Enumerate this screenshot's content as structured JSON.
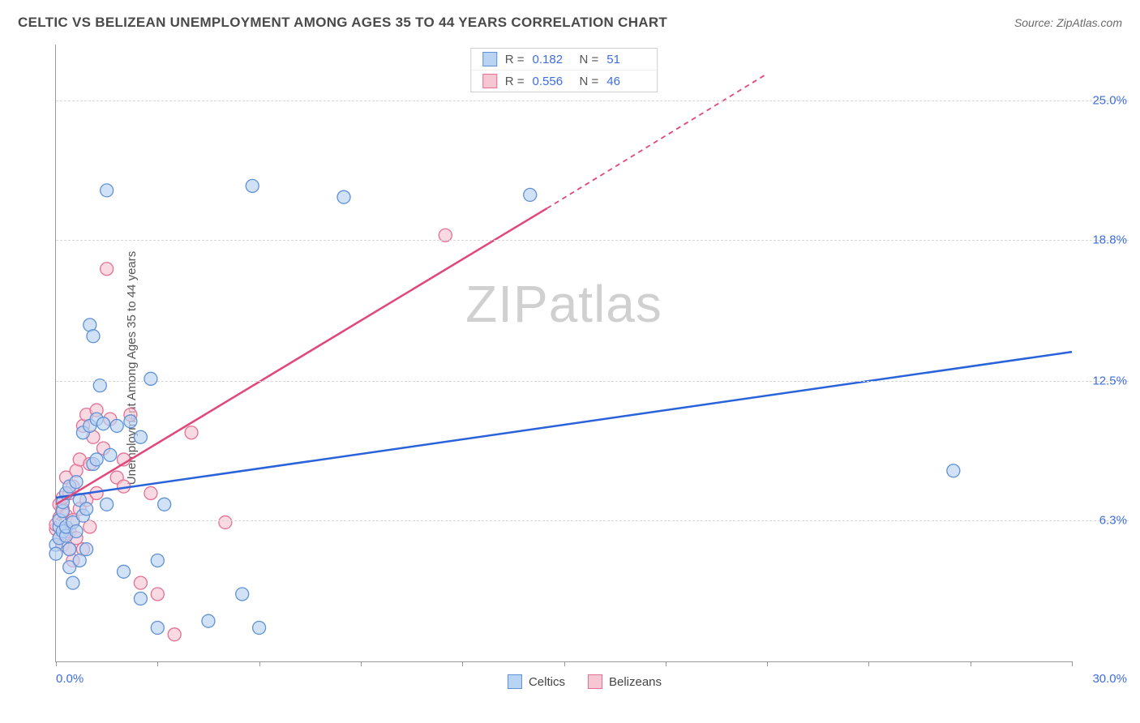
{
  "header": {
    "title": "CELTIC VS BELIZEAN UNEMPLOYMENT AMONG AGES 35 TO 44 YEARS CORRELATION CHART",
    "source": "Source: ZipAtlas.com"
  },
  "watermark": "ZIPatlas",
  "ylabel": "Unemployment Among Ages 35 to 44 years",
  "axes": {
    "xlim": [
      0,
      30
    ],
    "ylim": [
      0,
      27.5
    ],
    "xticks": [
      0,
      3,
      6,
      9,
      12,
      15,
      18,
      21,
      24,
      27,
      30
    ],
    "yticks": [
      6.3,
      12.5,
      18.8,
      25.0
    ],
    "ytick_labels": [
      "6.3%",
      "12.5%",
      "18.8%",
      "25.0%"
    ],
    "x_min_label": "0.0%",
    "x_max_label": "30.0%",
    "grid_color": "#d8d8d8",
    "axis_color": "#9a9a9a",
    "label_color": "#3d6de0",
    "label_fontsize": 15
  },
  "series": {
    "celtics": {
      "label": "Celtics",
      "color_fill": "#b9d3f2",
      "color_stroke": "#5f91d6",
      "line_color": "#2962d9",
      "marker_radius": 8,
      "R": "0.182",
      "N": "51",
      "trend": {
        "x1": 0,
        "y1": 7.3,
        "x2": 30,
        "y2": 13.8,
        "dashed": false
      },
      "points": [
        [
          0.0,
          5.2
        ],
        [
          0.0,
          4.8
        ],
        [
          0.1,
          5.5
        ],
        [
          0.1,
          6.0
        ],
        [
          0.1,
          6.3
        ],
        [
          0.2,
          5.8
        ],
        [
          0.2,
          6.7
        ],
        [
          0.2,
          7.1
        ],
        [
          0.3,
          5.6
        ],
        [
          0.3,
          6.0
        ],
        [
          0.3,
          7.5
        ],
        [
          0.4,
          4.2
        ],
        [
          0.4,
          5.0
        ],
        [
          0.4,
          7.8
        ],
        [
          0.5,
          3.5
        ],
        [
          0.5,
          6.2
        ],
        [
          0.6,
          5.8
        ],
        [
          0.6,
          8.0
        ],
        [
          0.7,
          4.5
        ],
        [
          0.7,
          7.2
        ],
        [
          0.8,
          6.5
        ],
        [
          0.8,
          10.2
        ],
        [
          0.9,
          5.0
        ],
        [
          0.9,
          6.8
        ],
        [
          1.0,
          10.5
        ],
        [
          1.0,
          15.0
        ],
        [
          1.1,
          8.8
        ],
        [
          1.1,
          14.5
        ],
        [
          1.2,
          9.0
        ],
        [
          1.2,
          10.8
        ],
        [
          1.3,
          12.3
        ],
        [
          1.4,
          10.6
        ],
        [
          1.5,
          7.0
        ],
        [
          1.5,
          21.0
        ],
        [
          1.6,
          9.2
        ],
        [
          1.8,
          10.5
        ],
        [
          2.0,
          4.0
        ],
        [
          2.2,
          10.7
        ],
        [
          2.5,
          2.8
        ],
        [
          2.5,
          10.0
        ],
        [
          2.8,
          12.6
        ],
        [
          3.0,
          1.5
        ],
        [
          3.0,
          4.5
        ],
        [
          3.2,
          7.0
        ],
        [
          4.5,
          1.8
        ],
        [
          5.5,
          3.0
        ],
        [
          5.8,
          21.2
        ],
        [
          6.0,
          1.5
        ],
        [
          8.5,
          20.7
        ],
        [
          14.0,
          20.8
        ],
        [
          26.5,
          8.5
        ]
      ]
    },
    "belizeans": {
      "label": "Belizeans",
      "color_fill": "#f6c6d2",
      "color_stroke": "#e66f93",
      "line_color": "#e0487a",
      "marker_radius": 8,
      "R": "0.556",
      "N": "46",
      "trend": {
        "x1": 0,
        "y1": 7.0,
        "x2": 14.5,
        "y2": 20.2,
        "dashed_extend_x2": 21.0,
        "dashed_extend_y2": 26.2
      },
      "points": [
        [
          0.0,
          5.9
        ],
        [
          0.0,
          6.1
        ],
        [
          0.1,
          5.5
        ],
        [
          0.1,
          6.4
        ],
        [
          0.1,
          7.0
        ],
        [
          0.2,
          5.2
        ],
        [
          0.2,
          6.2
        ],
        [
          0.2,
          6.8
        ],
        [
          0.2,
          7.3
        ],
        [
          0.3,
          5.7
        ],
        [
          0.3,
          6.0
        ],
        [
          0.3,
          6.5
        ],
        [
          0.3,
          8.2
        ],
        [
          0.4,
          5.0
        ],
        [
          0.4,
          5.8
        ],
        [
          0.4,
          7.5
        ],
        [
          0.5,
          4.5
        ],
        [
          0.5,
          6.3
        ],
        [
          0.5,
          7.8
        ],
        [
          0.6,
          5.5
        ],
        [
          0.6,
          8.5
        ],
        [
          0.7,
          6.8
        ],
        [
          0.7,
          9.0
        ],
        [
          0.8,
          5.0
        ],
        [
          0.8,
          10.5
        ],
        [
          0.9,
          7.2
        ],
        [
          0.9,
          11.0
        ],
        [
          1.0,
          6.0
        ],
        [
          1.0,
          8.8
        ],
        [
          1.1,
          10.0
        ],
        [
          1.2,
          7.5
        ],
        [
          1.2,
          11.2
        ],
        [
          1.4,
          9.5
        ],
        [
          1.5,
          17.5
        ],
        [
          1.6,
          10.8
        ],
        [
          1.8,
          8.2
        ],
        [
          2.0,
          7.8
        ],
        [
          2.0,
          9.0
        ],
        [
          2.2,
          11.0
        ],
        [
          2.5,
          3.5
        ],
        [
          2.8,
          7.5
        ],
        [
          3.0,
          3.0
        ],
        [
          3.5,
          1.2
        ],
        [
          4.0,
          10.2
        ],
        [
          5.0,
          6.2
        ],
        [
          11.5,
          19.0
        ]
      ]
    }
  },
  "legend_top_labels": {
    "R": "R =",
    "N": "N ="
  },
  "colors": {
    "title": "#4a4a4a",
    "source": "#6a6a6a",
    "background": "#ffffff"
  }
}
